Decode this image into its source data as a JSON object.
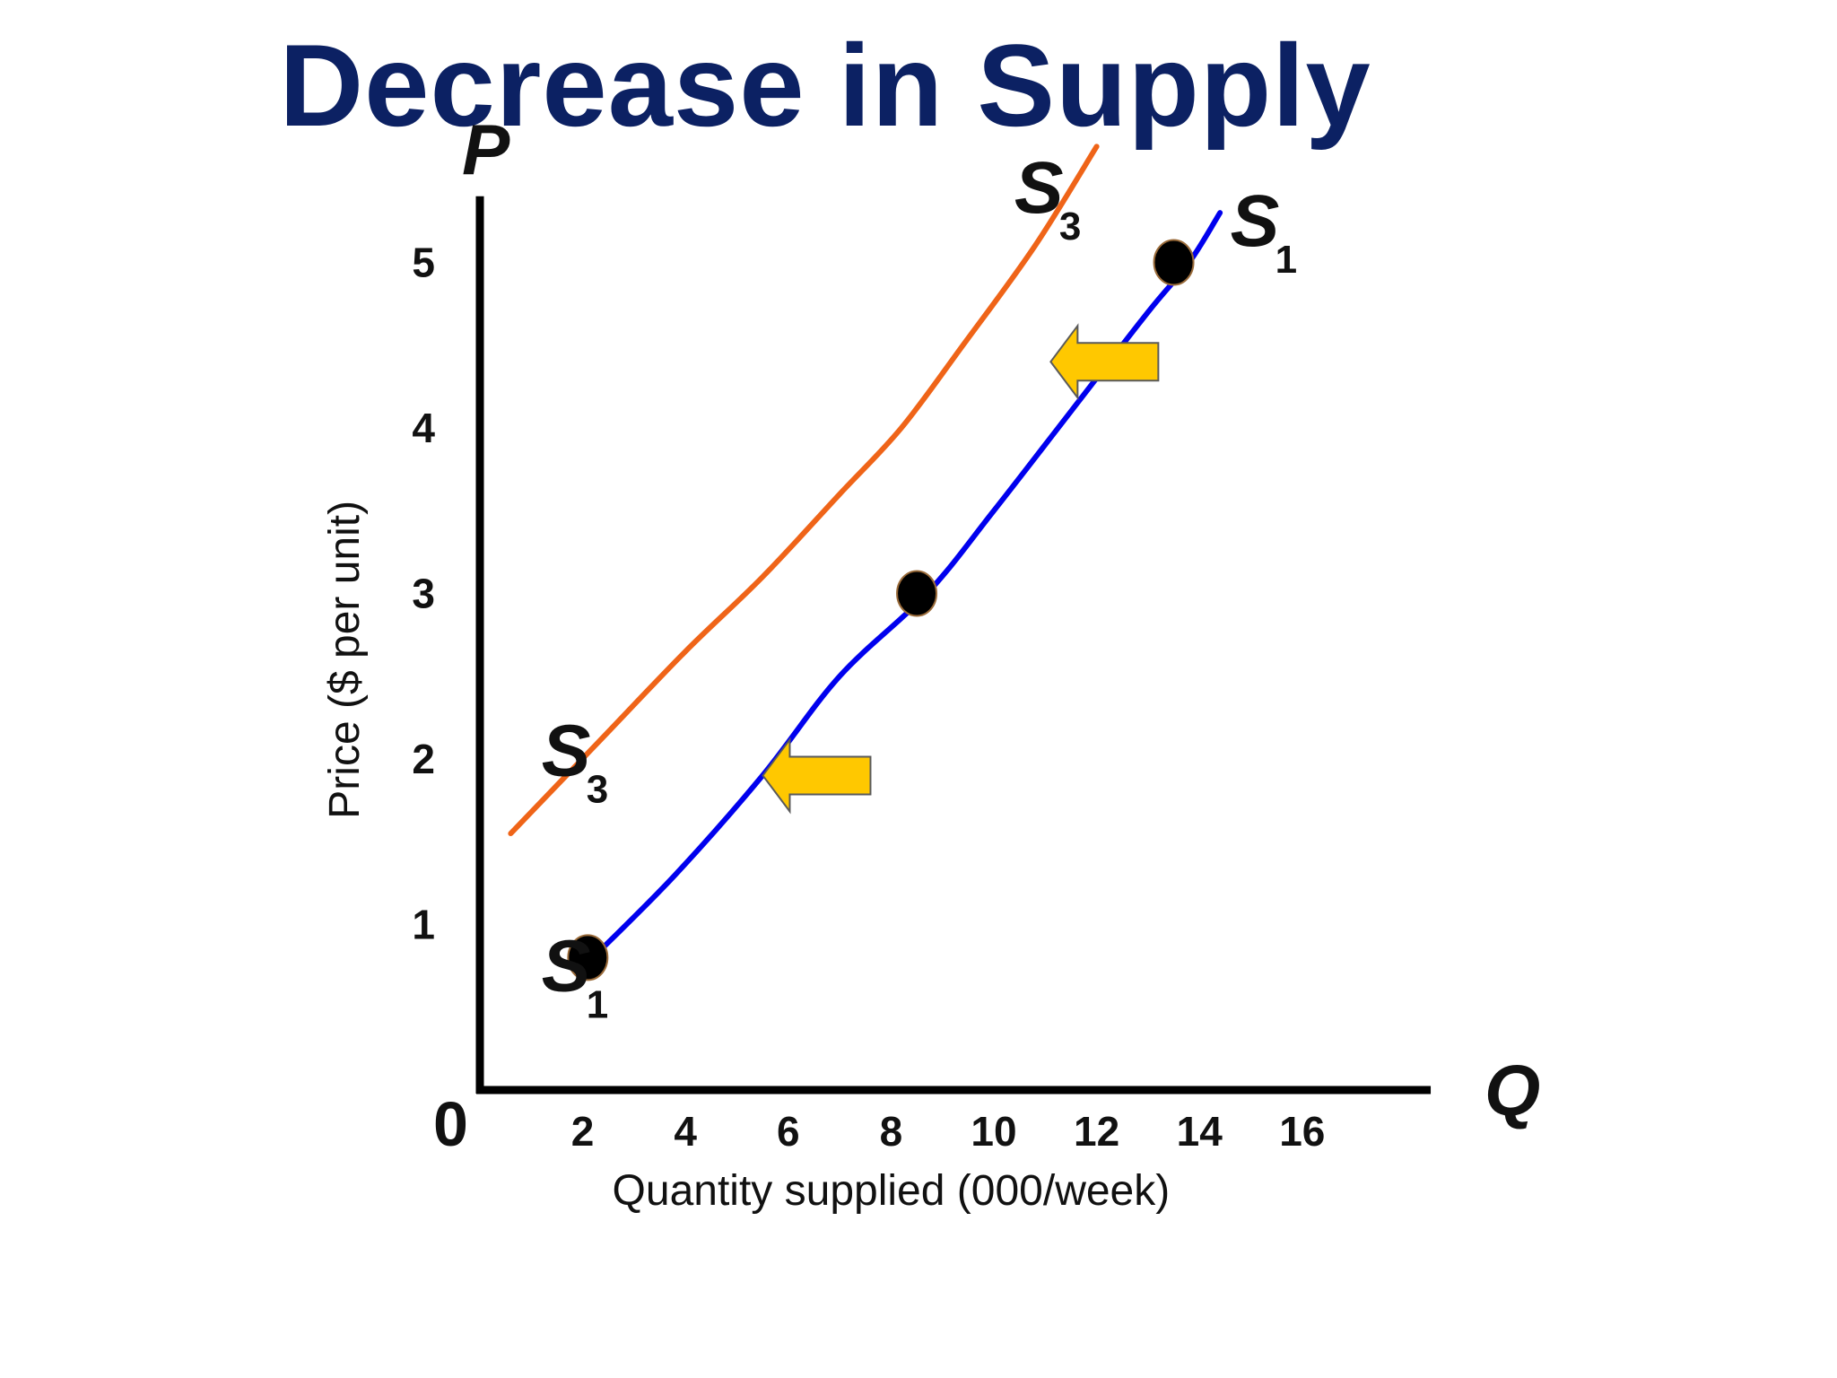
{
  "title": "Decrease in Supply",
  "chart_data": {
    "type": "line",
    "title": "Decrease in Supply",
    "xlabel": "Quantity supplied (000/week)",
    "ylabel": "Price ($ per unit)",
    "x_axis_letter": "Q",
    "y_axis_letter": "P",
    "origin_label": "0",
    "xlim": [
      0,
      18.5
    ],
    "ylim": [
      0,
      5.4
    ],
    "x_ticks": [
      "2",
      "4",
      "6",
      "8",
      "10",
      "12",
      "14",
      "16"
    ],
    "y_ticks": [
      "1",
      "2",
      "3",
      "4",
      "5"
    ],
    "series": [
      {
        "name": "S",
        "subscript": "1",
        "color": "#0000ee",
        "points": [
          [
            2.2,
            0.8
          ],
          [
            3.8,
            1.3
          ],
          [
            5.5,
            1.9
          ],
          [
            7.0,
            2.5
          ],
          [
            8.7,
            3.0
          ],
          [
            10.0,
            3.5
          ],
          [
            11.5,
            4.1
          ],
          [
            13.0,
            4.7
          ],
          [
            13.8,
            5.0
          ],
          [
            14.4,
            5.3
          ]
        ],
        "markers": [
          [
            2.1,
            0.8
          ],
          [
            8.5,
            3.0
          ],
          [
            13.5,
            5.0
          ]
        ]
      },
      {
        "name": "S",
        "subscript": "3",
        "color": "#ef6418",
        "points": [
          [
            0.6,
            1.55
          ],
          [
            2.3,
            2.1
          ],
          [
            4.0,
            2.65
          ],
          [
            5.5,
            3.1
          ],
          [
            7.0,
            3.6
          ],
          [
            8.2,
            4.0
          ],
          [
            9.4,
            4.5
          ],
          [
            10.8,
            5.1
          ],
          [
            12.0,
            5.7
          ]
        ],
        "markers": []
      }
    ],
    "annotations": [
      {
        "type": "arrow-left",
        "color": "#ffc800",
        "at": [
          7.6,
          1.9
        ]
      },
      {
        "type": "arrow-left",
        "color": "#ffc800",
        "at": [
          13.2,
          4.4
        ]
      }
    ],
    "curve_labels": [
      {
        "series": 0,
        "pos": "bottom",
        "at": [
          1.2,
          0.6
        ]
      },
      {
        "series": 0,
        "pos": "top",
        "at": [
          14.6,
          5.1
        ]
      },
      {
        "series": 1,
        "pos": "bottom",
        "at": [
          1.2,
          1.9
        ]
      },
      {
        "series": 1,
        "pos": "top",
        "at": [
          10.4,
          5.3
        ]
      }
    ]
  }
}
